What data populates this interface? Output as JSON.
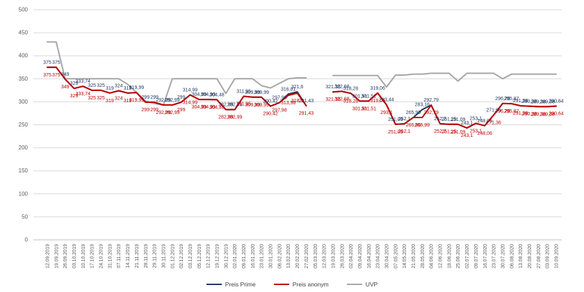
{
  "chart_data": {
    "type": "line",
    "title": "",
    "xlabel": "",
    "ylabel": "",
    "ylim": [
      0,
      500
    ],
    "grid": true,
    "legend_position": "bottom",
    "y_ticks": [
      "0",
      "50",
      "100",
      "150",
      "200",
      "250",
      "300",
      "350",
      "400",
      "450",
      "500"
    ],
    "x": [
      "12.09.2019",
      "19.09.2019",
      "26.09.2019",
      "03.10.2019",
      "10.10.2019",
      "17.10.2019",
      "24.10.2019",
      "31.10.2019",
      "07.11.2019",
      "14.11.2019",
      "21.11.2019",
      "28.11.2019",
      "29.11.2019",
      "30.11.2019",
      "01.12.2019",
      "02.12.2019",
      "03.12.2019",
      "05.12.2019",
      "12.12.2019",
      "19.12.2019",
      "30.12.2019",
      "02.01.2020",
      "09.01.2020",
      "16.01.2020",
      "23.01.2020",
      "30.01.2020",
      "06.02.2020",
      "13.02.2020",
      "20.02.2020",
      "27.02.2020",
      "05.03.2020",
      "12.03.2020",
      "19.03.2020",
      "26.03.2020",
      "02.04.2020",
      "09.04.2020",
      "16.04.2020",
      "23.04.2020",
      "30.04.2020",
      "07.05.2020",
      "14.05.2020",
      "21.05.2020",
      "28.05.2020",
      "04.06.2020",
      "12.06.2020",
      "18.06.2020",
      "25.06.2020",
      "02.07.2020",
      "09.07.2020",
      "16.07.2020",
      "23.07.2020",
      "30.07.2020",
      "06.08.2020",
      "13.08.2020",
      "20.08.2020",
      "27.08.2020",
      "03.09.2020",
      "10.09.2020"
    ],
    "series": [
      {
        "name": "Preis Prime",
        "color": "#1F3864",
        "z": 1,
        "labels": true,
        "values": [
          375,
          375,
          349,
          329,
          333.74,
          325,
          325,
          319,
          324,
          319,
          319.99,
          299,
          299,
          292.99,
          292.99,
          299,
          314.99,
          304.99,
          304.99,
          304.48,
          282.99,
          282.99,
          311.95,
          309.99,
          309.99,
          290.42,
          297.98,
          316.81,
          321.6,
          291.43,
          null,
          null,
          321.38,
          322.68,
          318.28,
          301.51,
          301.51,
          319.06,
          293.44,
          251.09,
          252.1,
          265.99,
          283.16,
          292.79,
          252.2,
          251.15,
          251.09,
          243.1,
          253.1,
          248.06,
          271.36,
          296.26,
          295.87,
          291.38,
          290.38,
          289.38,
          289.38,
          290.64
        ]
      },
      {
        "name": "Preis anonym",
        "color": "#C00000",
        "z": 2,
        "labels": true,
        "values": [
          375,
          375,
          349,
          329,
          333.74,
          325,
          325,
          319,
          324,
          319,
          319.99,
          299,
          299,
          292.99,
          292.99,
          299,
          314.99,
          304.99,
          304.99,
          304.48,
          282.99,
          282.99,
          311.95,
          309.99,
          309.99,
          290.42,
          297.98,
          313.98,
          318.9,
          291.43,
          null,
          null,
          321.38,
          322.68,
          318.28,
          301.51,
          301.51,
          319.06,
          293.1,
          251.09,
          252.1,
          265.95,
          265.99,
          292.79,
          252.2,
          251.15,
          251.09,
          243.1,
          253.1,
          248.06,
          271.36,
          296.26,
          295.87,
          291.38,
          290.38,
          289.38,
          289.38,
          290.64
        ]
      },
      {
        "name": "UVP",
        "color": "#A6A6A6",
        "z": 0,
        "labels": false,
        "values": [
          430,
          430,
          350,
          350,
          350,
          350,
          350,
          350,
          350,
          338,
          320,
          302,
          296,
          293,
          350,
          350,
          350,
          350,
          350,
          350,
          318,
          350,
          350,
          350,
          335,
          330,
          340,
          350,
          352,
          352,
          null,
          null,
          357,
          357,
          357,
          357,
          357,
          357,
          332,
          358,
          358,
          360,
          360,
          362,
          362,
          362,
          345,
          362,
          362,
          362,
          362,
          350,
          360,
          360,
          360,
          360,
          360,
          360
        ]
      }
    ],
    "colors": {
      "gridline": "#D9D9D9",
      "axis_line": "#BFBFBF",
      "tick_text": "#595959"
    }
  },
  "legend": {
    "items": [
      "Preis Prime",
      "Preis anonym",
      "UVP"
    ]
  }
}
